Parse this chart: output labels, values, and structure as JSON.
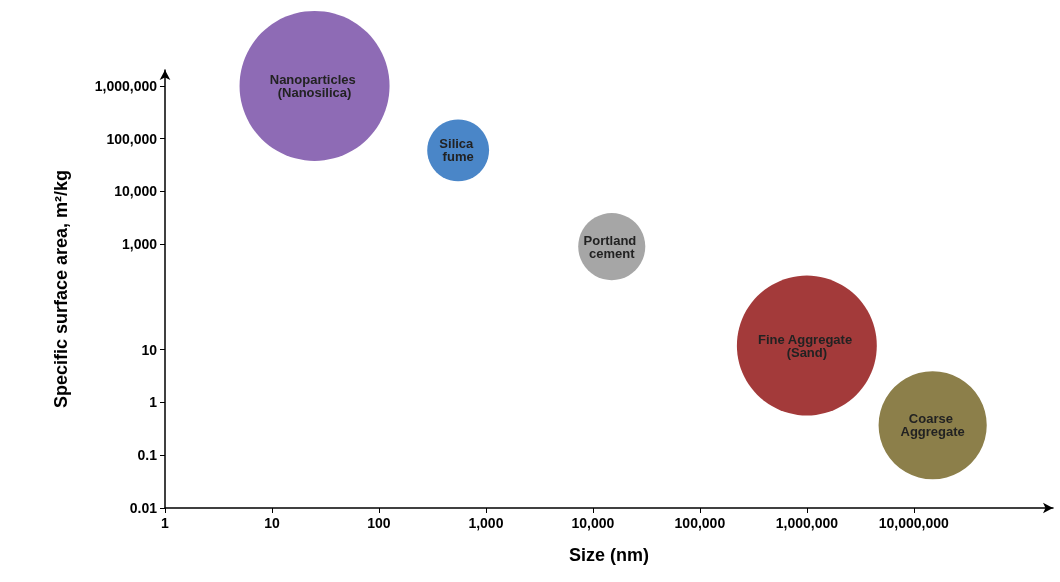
{
  "chart_data": {
    "type": "bubble",
    "xlabel": "Size (nm)",
    "ylabel": "Specific surface area, m²/kg",
    "log": "xy",
    "grid": false,
    "legend": false,
    "xlim": [
      1,
      200000000
    ],
    "ylim": [
      0.01,
      2000000
    ],
    "xticks": [
      1,
      10,
      100,
      {
        "value": 1000,
        "label": "1,000"
      },
      {
        "value": 10000,
        "label": "10,000"
      },
      {
        "value": 100000,
        "label": "100,000"
      },
      {
        "value": 1000000,
        "label": "1,000,000"
      },
      {
        "value": 10000000,
        "label": "10,000,000"
      }
    ],
    "yticks": [
      0.01,
      0.1,
      1,
      10,
      {
        "value": 1000,
        "label": "1,000"
      },
      {
        "value": 10000,
        "label": "10,000"
      },
      {
        "value": 100000,
        "label": "100,000"
      },
      {
        "value": 1000000,
        "label": "1,000,000"
      }
    ],
    "series": [
      {
        "name": "Nanoparticles (Nanosilica)",
        "color": "#8e6bb5",
        "x": [
          25
        ],
        "values": [
          1000000
        ],
        "sizes": [
          1
        ]
      },
      {
        "name": "Silica fume",
        "color": "#4a86c8",
        "x": [
          550
        ],
        "values": [
          60000
        ],
        "sizes": [
          0.17
        ]
      },
      {
        "name": "Portland cement",
        "color": "#a6a6a6",
        "x": [
          15000
        ],
        "values": [
          900
        ],
        "sizes": [
          0.2
        ]
      },
      {
        "name": "Fine Aggregate (Sand)",
        "color": "#a33a3a",
        "x": [
          1000000
        ],
        "values": [
          12
        ],
        "sizes": [
          0.87
        ]
      },
      {
        "name": "Coarse Aggregate",
        "color": "#8c7f4a",
        "x": [
          15000000
        ],
        "values": [
          0.37
        ],
        "sizes": [
          0.52
        ]
      }
    ]
  }
}
